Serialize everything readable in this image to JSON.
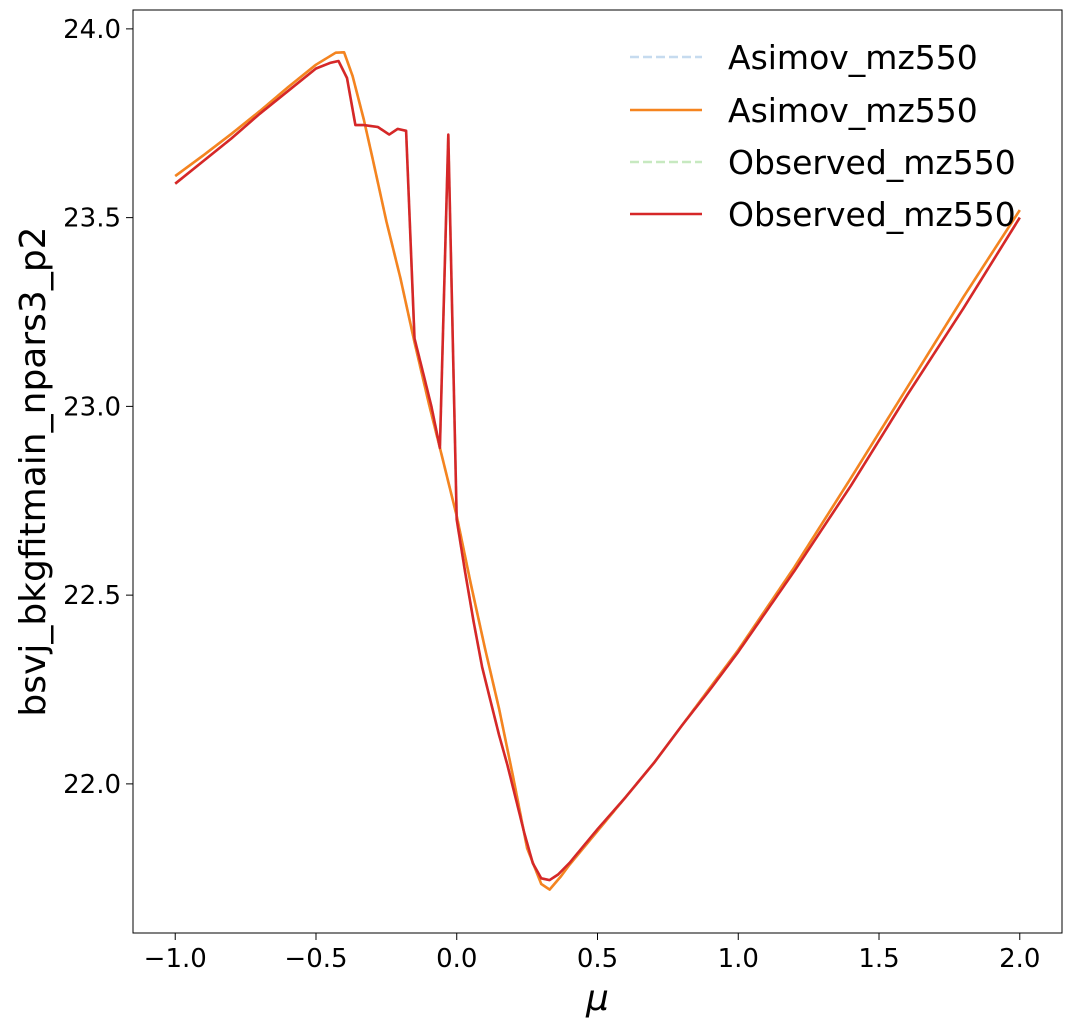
{
  "chart_data": {
    "type": "line",
    "title": "",
    "xlabel": "μ",
    "ylabel": "bsvj_bkgfitmain_npars3_p2",
    "xlim": [
      -1.15,
      2.15
    ],
    "ylim": [
      21.605,
      24.05
    ],
    "xticks": [
      -1.0,
      -0.5,
      0.0,
      0.5,
      1.0,
      1.5,
      2.0
    ],
    "xtick_labels": [
      "−1.0",
      "−0.5",
      "0.0",
      "0.5",
      "1.0",
      "1.5",
      "2.0"
    ],
    "yticks": [
      22.0,
      22.5,
      23.0,
      23.5,
      24.0
    ],
    "ytick_labels": [
      "22.0",
      "22.5",
      "23.0",
      "23.5",
      "24.0"
    ],
    "grid": false,
    "legend_position": "top-right",
    "series": [
      {
        "name": "Asimov_mz550",
        "color": "#c6dbef",
        "style": "dashed",
        "x": [
          -1.0,
          -0.9,
          -0.8,
          -0.7,
          -0.6,
          -0.5,
          -0.43,
          -0.4,
          -0.37,
          -0.33,
          -0.3,
          -0.25,
          -0.2,
          -0.15,
          -0.1,
          -0.05,
          0.0,
          0.05,
          0.1,
          0.15,
          0.2,
          0.25,
          0.3,
          0.33,
          0.37,
          0.4,
          0.5,
          0.6,
          0.7,
          0.8,
          0.9,
          1.0,
          1.2,
          1.4,
          1.6,
          1.8,
          2.0
        ],
        "y": [
          23.61,
          23.665,
          23.722,
          23.782,
          23.845,
          23.905,
          23.937,
          23.938,
          23.875,
          23.76,
          23.66,
          23.49,
          23.34,
          23.17,
          23.01,
          22.86,
          22.71,
          22.53,
          22.36,
          22.2,
          22.02,
          21.83,
          21.735,
          21.72,
          21.755,
          21.785,
          21.875,
          21.965,
          22.055,
          22.155,
          22.255,
          22.355,
          22.575,
          22.81,
          23.05,
          23.29,
          23.52
        ]
      },
      {
        "name": "Asimov_mz550",
        "color": "#f5841f",
        "style": "solid",
        "x": [
          -1.0,
          -0.9,
          -0.8,
          -0.7,
          -0.6,
          -0.5,
          -0.43,
          -0.4,
          -0.37,
          -0.33,
          -0.3,
          -0.25,
          -0.2,
          -0.15,
          -0.1,
          -0.05,
          0.0,
          0.05,
          0.1,
          0.15,
          0.2,
          0.25,
          0.3,
          0.33,
          0.37,
          0.4,
          0.5,
          0.6,
          0.7,
          0.8,
          0.9,
          1.0,
          1.2,
          1.4,
          1.6,
          1.8,
          2.0
        ],
        "y": [
          23.61,
          23.665,
          23.722,
          23.782,
          23.845,
          23.905,
          23.937,
          23.938,
          23.875,
          23.76,
          23.66,
          23.49,
          23.34,
          23.17,
          23.01,
          22.86,
          22.71,
          22.53,
          22.36,
          22.2,
          22.02,
          21.83,
          21.735,
          21.72,
          21.755,
          21.785,
          21.875,
          21.965,
          22.055,
          22.155,
          22.255,
          22.355,
          22.575,
          22.81,
          23.05,
          23.29,
          23.52
        ]
      },
      {
        "name": "Observed_mz550",
        "color": "#c7e9c0",
        "style": "dashed",
        "x": [
          -1.0,
          -0.9,
          -0.8,
          -0.7,
          -0.6,
          -0.5,
          -0.45,
          -0.42,
          -0.39,
          -0.36,
          -0.33,
          -0.28,
          -0.24,
          -0.21,
          -0.18,
          -0.15,
          -0.12,
          -0.09,
          -0.06,
          -0.03,
          0.0,
          0.03,
          0.06,
          0.09,
          0.12,
          0.15,
          0.18,
          0.21,
          0.24,
          0.27,
          0.3,
          0.33,
          0.36,
          0.4,
          0.5,
          0.6,
          0.7,
          0.8,
          0.9,
          1.0,
          1.2,
          1.4,
          1.6,
          1.8,
          2.0
        ],
        "y": [
          23.59,
          23.65,
          23.71,
          23.775,
          23.835,
          23.895,
          23.91,
          23.915,
          23.87,
          23.745,
          23.745,
          23.74,
          23.72,
          23.735,
          23.73,
          23.18,
          23.09,
          23.0,
          22.89,
          23.72,
          22.7,
          22.56,
          22.43,
          22.31,
          22.22,
          22.13,
          22.05,
          21.96,
          21.87,
          21.79,
          21.75,
          21.745,
          21.76,
          21.79,
          21.88,
          21.965,
          22.055,
          22.155,
          22.25,
          22.35,
          22.565,
          22.79,
          23.03,
          23.26,
          23.5
        ]
      },
      {
        "name": "Observed_mz550",
        "color": "#d62728",
        "style": "solid",
        "x": [
          -1.0,
          -0.9,
          -0.8,
          -0.7,
          -0.6,
          -0.5,
          -0.45,
          -0.42,
          -0.39,
          -0.36,
          -0.33,
          -0.28,
          -0.24,
          -0.21,
          -0.18,
          -0.15,
          -0.12,
          -0.09,
          -0.06,
          -0.03,
          0.0,
          0.03,
          0.06,
          0.09,
          0.12,
          0.15,
          0.18,
          0.21,
          0.24,
          0.27,
          0.3,
          0.33,
          0.36,
          0.4,
          0.5,
          0.6,
          0.7,
          0.8,
          0.9,
          1.0,
          1.2,
          1.4,
          1.6,
          1.8,
          2.0
        ],
        "y": [
          23.59,
          23.65,
          23.71,
          23.775,
          23.835,
          23.895,
          23.91,
          23.915,
          23.87,
          23.745,
          23.745,
          23.74,
          23.72,
          23.735,
          23.73,
          23.18,
          23.09,
          23.0,
          22.89,
          23.72,
          22.7,
          22.56,
          22.43,
          22.31,
          22.22,
          22.13,
          22.05,
          21.96,
          21.87,
          21.79,
          21.75,
          21.745,
          21.76,
          21.79,
          21.88,
          21.965,
          22.055,
          22.155,
          22.25,
          22.35,
          22.565,
          22.79,
          23.03,
          23.26,
          23.5
        ]
      }
    ]
  }
}
